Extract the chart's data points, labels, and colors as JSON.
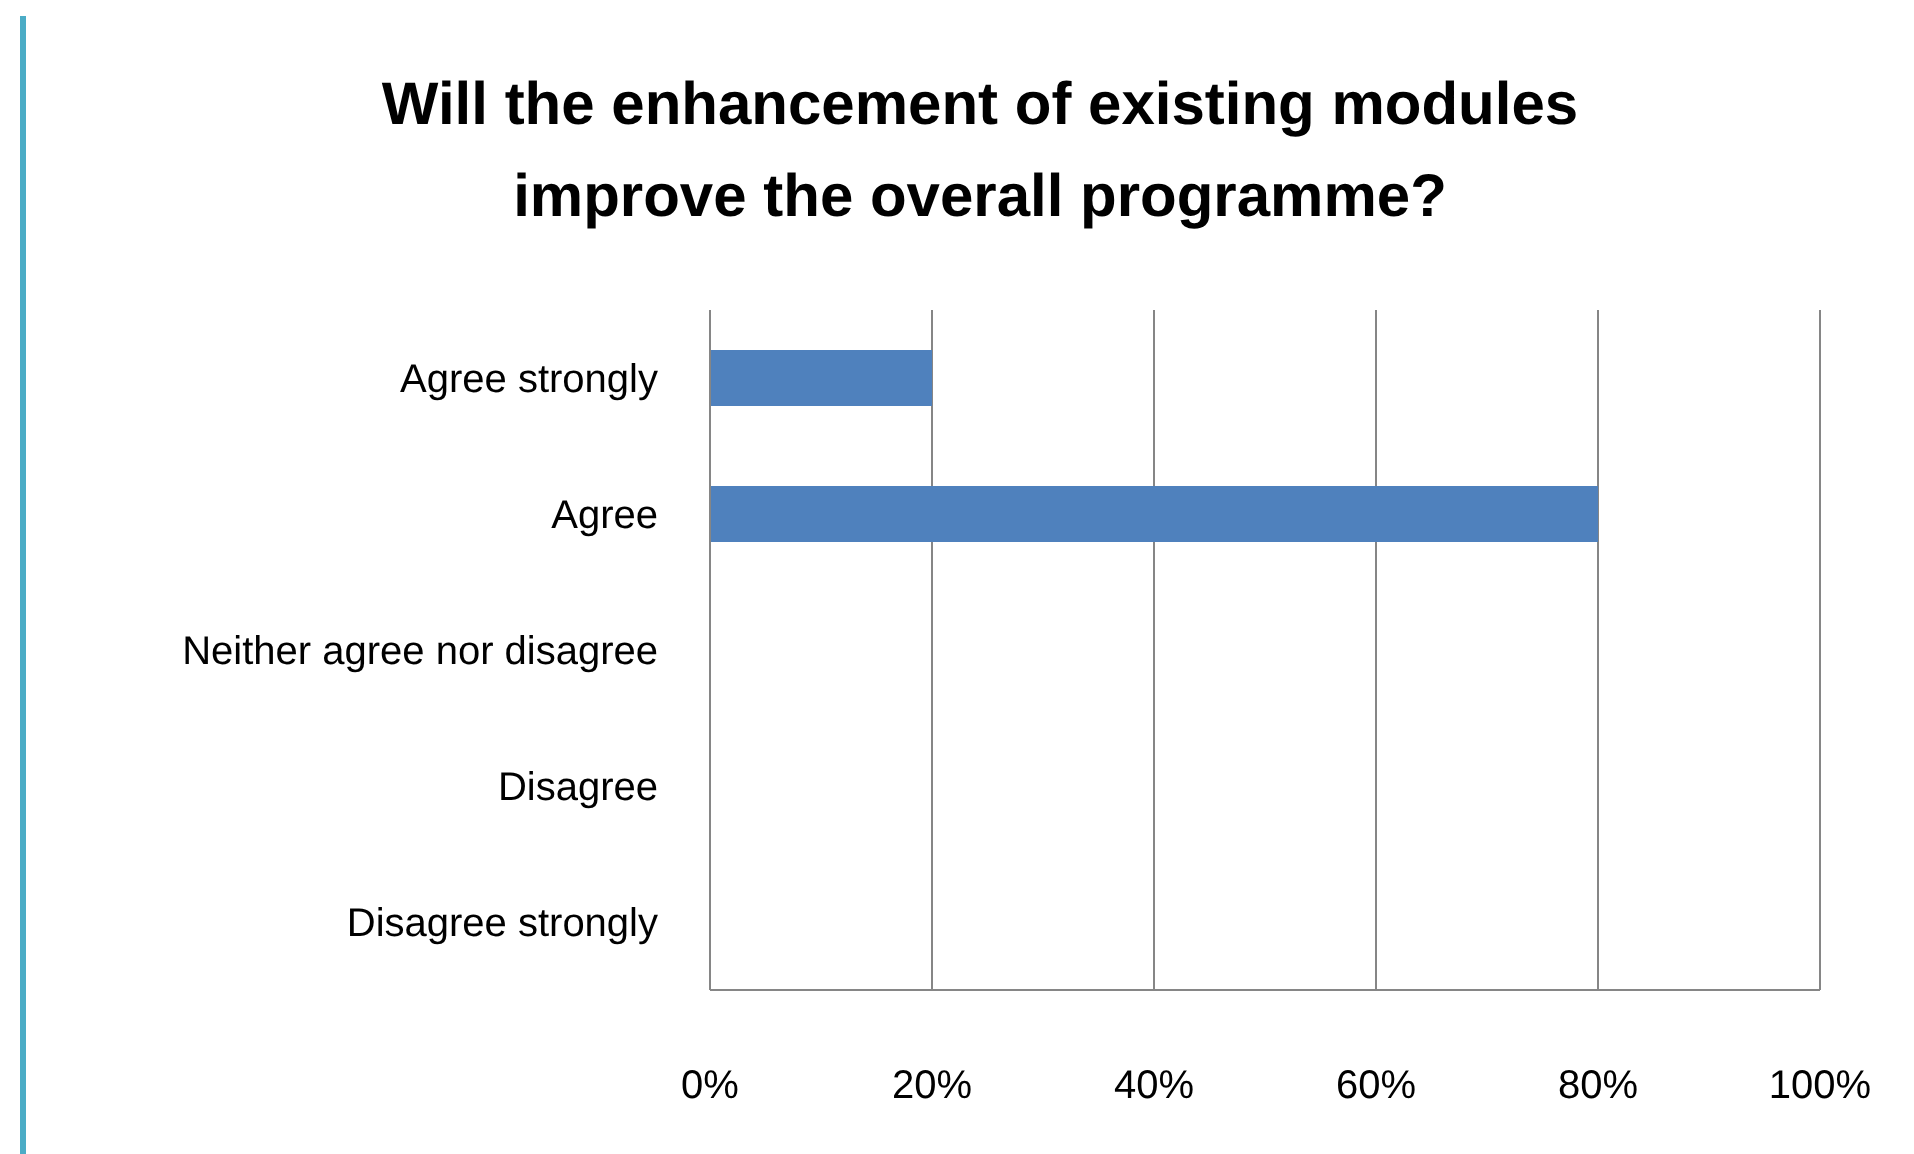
{
  "chart_data": {
    "type": "bar",
    "orientation": "horizontal",
    "title": "Will the enhancement of existing modules improve the overall programme?",
    "categories": [
      "Agree strongly",
      "Agree",
      "Neither agree nor disagree",
      "Disagree",
      "Disagree strongly"
    ],
    "values": [
      20,
      80,
      0,
      0,
      0
    ],
    "color": "#4f81bd",
    "xlim": [
      0,
      100
    ],
    "xticks": [
      {
        "value": 0,
        "label": "0%"
      },
      {
        "value": 20,
        "label": "20%"
      },
      {
        "value": 40,
        "label": "40%"
      },
      {
        "value": 60,
        "label": "60%"
      },
      {
        "value": 80,
        "label": "80%"
      },
      {
        "value": 100,
        "label": "100%"
      }
    ],
    "grid": "x",
    "legend": false
  }
}
